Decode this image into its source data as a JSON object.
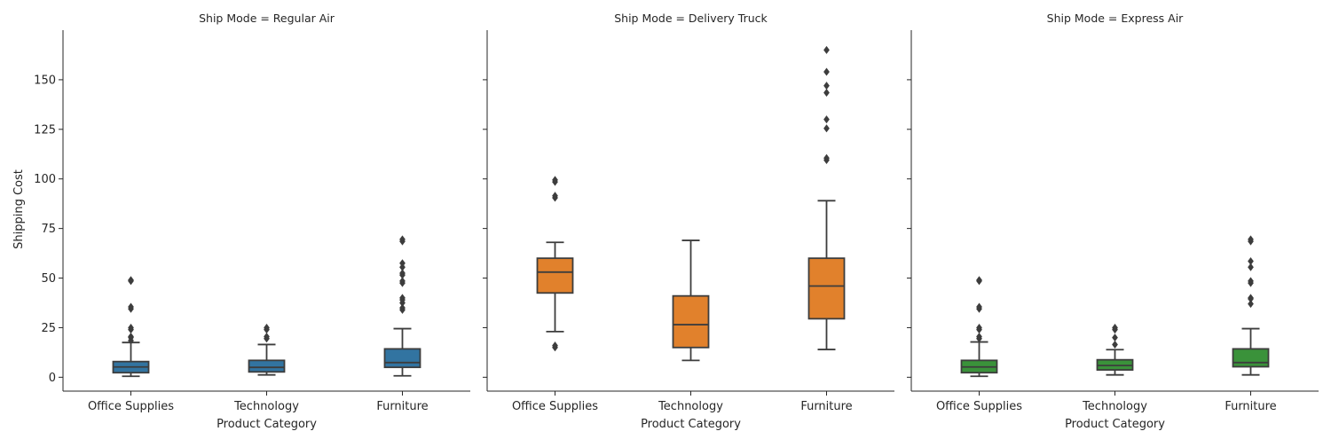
{
  "chart_data": {
    "type": "boxplot",
    "ylabel": "Shipping Cost",
    "xlabel": "Product Category",
    "ylim": [
      -7,
      175
    ],
    "yticks": [
      0,
      25,
      50,
      75,
      100,
      125,
      150
    ],
    "categories": [
      "Office Supplies",
      "Technology",
      "Furniture"
    ],
    "panels": [
      {
        "title": "Ship Mode = Regular Air",
        "color": "#3274a1",
        "boxes": [
          {
            "category": "Office Supplies",
            "whisker_low": 0.5,
            "q1": 2.3,
            "median": 5.2,
            "q3": 7.9,
            "whisker_high": 17.5,
            "outliers": [
              18.5,
              20.0,
              20.5,
              24.0,
              25.0,
              34.5,
              35.5,
              48.5,
              49.0
            ]
          },
          {
            "category": "Technology",
            "whisker_low": 1.2,
            "q1": 2.7,
            "median": 5.0,
            "q3": 8.5,
            "whisker_high": 16.5,
            "outliers": [
              19.5,
              20.5,
              24.0,
              25.0
            ]
          },
          {
            "category": "Furniture",
            "whisker_low": 0.7,
            "q1": 5.0,
            "median": 7.4,
            "q3": 14.3,
            "whisker_high": 24.5,
            "outliers": [
              34.0,
              35.0,
              37.5,
              39.0,
              40.0,
              47.5,
              48.5,
              51.5,
              52.5,
              55.5,
              57.5,
              68.5,
              69.5
            ]
          }
        ]
      },
      {
        "title": "Ship Mode = Delivery Truck",
        "color": "#e1812c",
        "boxes": [
          {
            "category": "Office Supplies",
            "whisker_low": 23.0,
            "q1": 42.5,
            "median": 53.0,
            "q3": 60.0,
            "whisker_high": 68.0,
            "outliers": [
              15.0,
              16.0,
              90.5,
              91.5,
              98.5,
              99.5
            ]
          },
          {
            "category": "Technology",
            "whisker_low": 8.5,
            "q1": 15.0,
            "median": 26.5,
            "q3": 41.0,
            "whisker_high": 69.0,
            "outliers": []
          },
          {
            "category": "Furniture",
            "whisker_low": 14.0,
            "q1": 29.5,
            "median": 46.0,
            "q3": 60.0,
            "whisker_high": 89.0,
            "outliers": [
              109.5,
              110.5,
              125.5,
              130.0,
              143.5,
              147.0,
              154.0,
              165.0
            ]
          }
        ]
      },
      {
        "title": "Ship Mode = Express Air",
        "color": "#3a923a",
        "boxes": [
          {
            "category": "Office Supplies",
            "whisker_low": 0.5,
            "q1": 2.3,
            "median": 5.2,
            "q3": 8.5,
            "whisker_high": 17.8,
            "outliers": [
              19.5,
              20.5,
              24.0,
              25.0,
              34.5,
              35.5,
              48.5,
              49.0
            ]
          },
          {
            "category": "Technology",
            "whisker_low": 1.2,
            "q1": 3.7,
            "median": 5.9,
            "q3": 8.8,
            "whisker_high": 13.9,
            "outliers": [
              16.5,
              20.0,
              24.0,
              25.0
            ]
          },
          {
            "category": "Furniture",
            "whisker_low": 1.2,
            "q1": 5.3,
            "median": 7.4,
            "q3": 14.3,
            "whisker_high": 24.5,
            "outliers": [
              37.0,
              39.5,
              40.0,
              47.5,
              48.5,
              55.5,
              58.5,
              68.5,
              69.5
            ]
          }
        ]
      }
    ]
  }
}
